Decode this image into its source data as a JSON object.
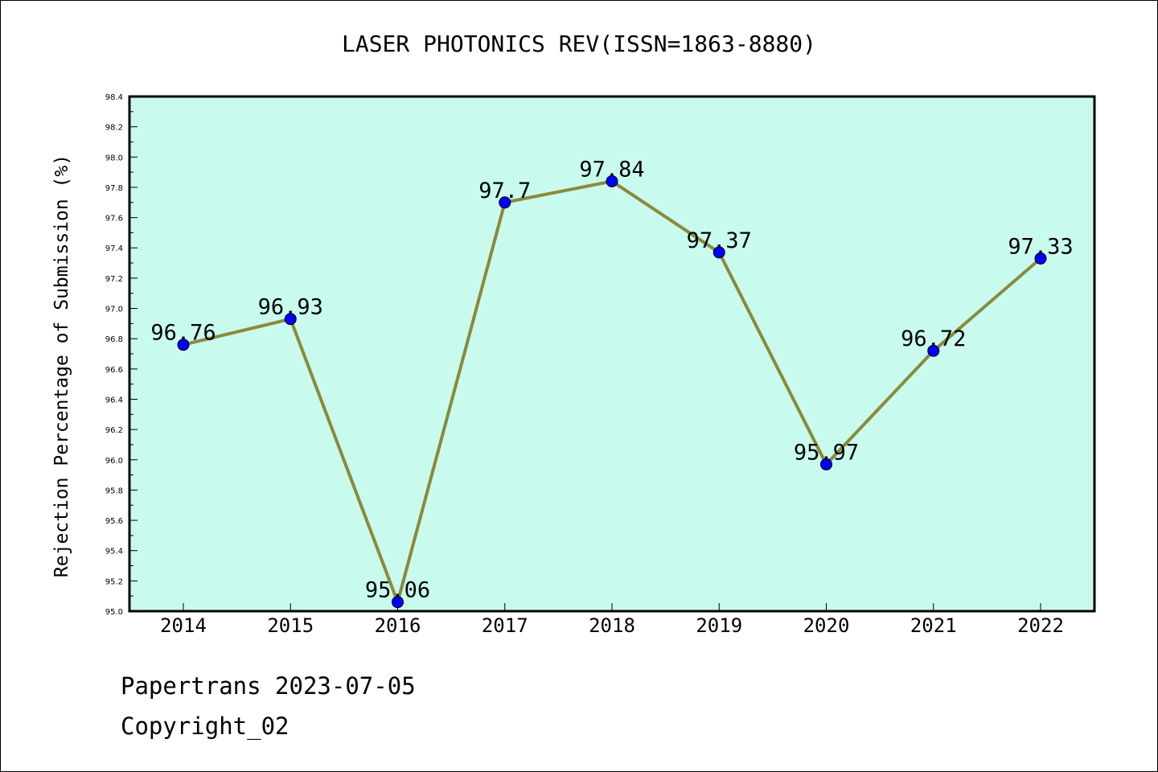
{
  "chart_data": {
    "type": "line",
    "title": "LASER PHOTONICS REV(ISSN=1863-8880)",
    "xlabel": "",
    "ylabel": "Rejection Percentage of Submission (%)",
    "categories": [
      "2014",
      "2015",
      "2016",
      "2017",
      "2018",
      "2019",
      "2020",
      "2021",
      "2022"
    ],
    "series": [
      {
        "values": [
          96.76,
          96.93,
          95.06,
          97.7,
          97.84,
          97.37,
          95.97,
          96.72,
          97.33
        ],
        "labels": [
          "96.76",
          "96.93",
          "95.06",
          "97.7",
          "97.84",
          "97.37",
          "95.97",
          "96.72",
          "97.33"
        ]
      }
    ],
    "ylim": [
      95.0,
      98.4
    ],
    "yticks": [
      "95.0",
      "95.2",
      "95.4",
      "95.6",
      "95.8",
      "96.0",
      "96.2",
      "96.4",
      "96.6",
      "96.8",
      "97.0",
      "97.2",
      "97.4",
      "97.6",
      "97.8",
      "98.0",
      "98.2",
      "98.4"
    ],
    "grid": false,
    "colors": {
      "plot_background": "#c8fbee",
      "line": "#8b8a3a",
      "marker": "#0000ff"
    }
  },
  "footer": {
    "line1": "Papertrans 2023-07-05",
    "line2": "Copyright_02"
  }
}
